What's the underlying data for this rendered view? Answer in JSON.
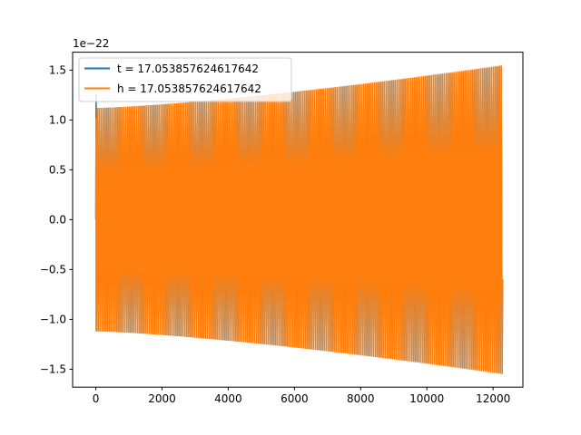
{
  "chart_data": {
    "type": "line",
    "title": "",
    "xlabel": "",
    "ylabel": "",
    "y_offset_label": "1e−22",
    "xlim": [
      -700,
      12900
    ],
    "ylim": [
      -1.68,
      1.68
    ],
    "x_ticks": [
      0,
      2000,
      4000,
      6000,
      8000,
      10000,
      12000
    ],
    "x_tick_labels": [
      "0",
      "2000",
      "4000",
      "6000",
      "8000",
      "10000",
      "12000"
    ],
    "y_ticks": [
      -1.5,
      -1.0,
      -0.5,
      0.0,
      0.5,
      1.0,
      1.5
    ],
    "y_tick_labels": [
      "−1.5",
      "−1.0",
      "−0.5",
      "0.0",
      "0.5",
      "1.0",
      "1.5"
    ],
    "grid": false,
    "legend_position": "upper-left",
    "x_range": [
      0,
      12288
    ],
    "approx_cycles": 215,
    "series": [
      {
        "name": "t = 17.053857624617642",
        "color": "#1f77b4",
        "envelope_start": 1.12,
        "envelope_end": 1.54,
        "initial_peak": 1.26
      },
      {
        "name": "h = 17.053857624617642",
        "color": "#ff7f0e",
        "envelope_start": 1.12,
        "envelope_end": 1.55,
        "initial_peak": 1.02
      }
    ]
  }
}
